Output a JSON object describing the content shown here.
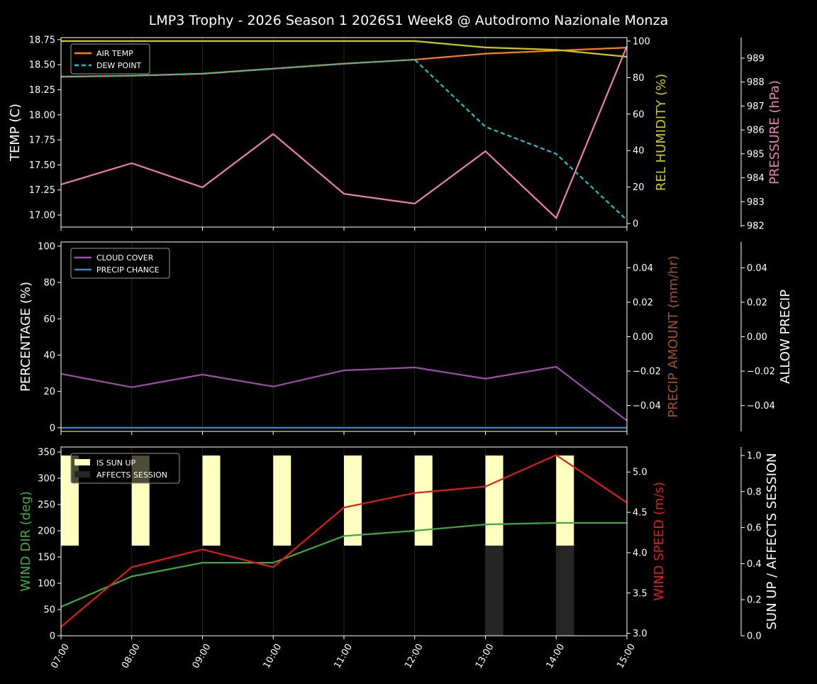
{
  "chart_data": {
    "title": "LMP3 Trophy - 2026 Season 1 2026S1 Week8 @ Autodromo Nazionale Monza",
    "x": [
      "07:00",
      "08:00",
      "09:00",
      "10:00",
      "11:00",
      "12:00",
      "13:00",
      "14:00",
      "15:00"
    ],
    "grid": "vertical",
    "panels": [
      {
        "type": "line",
        "legend_placement": "upper-left",
        "axes": [
          {
            "side": "left",
            "label": "TEMP (C)",
            "color": "#ffffff",
            "ylim": [
              16.88,
              18.77
            ],
            "ticks": [
              17.0,
              17.25,
              17.5,
              17.75,
              18.0,
              18.25,
              18.5,
              18.75
            ],
            "tick_labels": [
              "17.00",
              "17.25",
              "17.50",
              "17.75",
              "18.00",
              "18.25",
              "18.50",
              "18.75"
            ]
          },
          {
            "side": "right",
            "label": "REL HUMIDITY (%)",
            "color": "#cccc00",
            "ylim": [
              -1.9,
              101.9
            ],
            "ticks": [
              0,
              20,
              40,
              60,
              80,
              100
            ],
            "tick_labels": [
              "0",
              "20",
              "40",
              "60",
              "80",
              "100"
            ]
          },
          {
            "side": "right-outer",
            "label": "PRESSURE (hPa)",
            "color": "#f07cb8",
            "ylim": [
              981.94,
              989.86
            ],
            "ticks": [
              982,
              983,
              984,
              985,
              986,
              987,
              988,
              989
            ],
            "tick_labels": [
              "982",
              "983",
              "984",
              "985",
              "986",
              "987",
              "988",
              "989"
            ]
          }
        ],
        "series": [
          {
            "name": "AIR TEMP",
            "axis": 0,
            "color": "#ff7f0e",
            "dashed": false,
            "legend": true,
            "values": [
              18.38,
              18.39,
              18.41,
              18.46,
              18.51,
              18.55,
              18.61,
              18.64,
              18.67
            ]
          },
          {
            "name": "DEW POINT",
            "axis": 0,
            "color": "#17c8c8",
            "dashed": true,
            "legend": true,
            "values": [
              18.38,
              18.39,
              18.41,
              18.46,
              18.51,
              18.55,
              17.88,
              17.61,
              16.95
            ]
          },
          {
            "axis": 1,
            "color": "#cccc00",
            "dashed": false,
            "legend": false,
            "values": [
              100,
              100,
              100,
              100,
              100,
              100,
              96.5,
              95.2,
              91.4
            ]
          },
          {
            "axis": 2,
            "color": "#f07cb8",
            "dashed": false,
            "legend": false,
            "values": [
              983.72,
              984.61,
              983.6,
              985.83,
              983.33,
              982.92,
              985.11,
              982.32,
              989.5
            ]
          }
        ]
      },
      {
        "type": "line",
        "legend_placement": "upper-left",
        "axes": [
          {
            "side": "left",
            "label": "PERCENTAGE (%)",
            "color": "#ffffff",
            "ylim": [
              -2.0,
              102.3
            ],
            "ticks": [
              0,
              20,
              40,
              60,
              80,
              100
            ],
            "tick_labels": [
              "0",
              "20",
              "40",
              "60",
              "80",
              "100"
            ]
          },
          {
            "side": "right",
            "label": "PRECIP AMOUNT (mm/hr)",
            "color": "#a0522d",
            "ylim": [
              -0.055,
              0.055
            ],
            "ticks": [
              -0.04,
              -0.02,
              0,
              0.02,
              0.04
            ],
            "tick_labels": [
              "−0.04",
              "−0.02",
              "0.00",
              "0.02",
              "0.04"
            ]
          },
          {
            "side": "right-outer",
            "label": "ALLOW PRECIP",
            "color": "#ffffff",
            "ylim": [
              -0.055,
              0.055
            ],
            "ticks": [
              -0.04,
              -0.02,
              0,
              0.02,
              0.04
            ],
            "tick_labels": [
              "−0.04",
              "−0.02",
              "0.00",
              "0.02",
              "0.04"
            ]
          }
        ],
        "series": [
          {
            "name": "CLOUD COVER",
            "axis": 0,
            "color": "#9b4fa6",
            "dashed": false,
            "legend": true,
            "values": [
              29.7,
              22.3,
              29.3,
              22.7,
              31.6,
              33.2,
              27.0,
              33.6,
              3.9
            ]
          },
          {
            "name": "PRECIP CHANCE",
            "axis": 0,
            "color": "#3d85c6",
            "dashed": false,
            "legend": true,
            "values": [
              0,
              0,
              0,
              0,
              0,
              0,
              0,
              0,
              0
            ]
          }
        ]
      },
      {
        "type": "line+bar",
        "legend_placement": "upper-left",
        "axes": [
          {
            "side": "left",
            "label": "WIND DIR (deg)",
            "color": "#3daa3d",
            "ylim": [
              0,
              359.5
            ],
            "ticks": [
              0,
              50,
              100,
              150,
              200,
              250,
              300,
              350
            ],
            "tick_labels": [
              "0",
              "50",
              "100",
              "150",
              "200",
              "250",
              "300",
              "350"
            ]
          },
          {
            "side": "right",
            "label": "WIND SPEED (m/s)",
            "color": "#e31a1c",
            "ylim": [
              2.97,
              5.31
            ],
            "ticks": [
              3.0,
              3.5,
              4.0,
              4.5,
              5.0
            ],
            "tick_labels": [
              "3.0",
              "3.5",
              "4.0",
              "4.5",
              "5.0"
            ]
          },
          {
            "side": "right-outer",
            "label": "SUN UP / AFFECTS SESSION",
            "color": "#ffffff",
            "ylim": [
              0,
              1.047
            ],
            "ticks": [
              0,
              0.2,
              0.4,
              0.6,
              0.8,
              1.0
            ],
            "tick_labels": [
              "0.0",
              "0.2",
              "0.4",
              "0.6",
              "0.8",
              "1.0"
            ]
          }
        ],
        "bars": [
          {
            "name": "IS SUN UP",
            "axis": 2,
            "color": "#ffffc0",
            "base": 0.5,
            "height": 0.5,
            "values": [
              1,
              1,
              1,
              1,
              1,
              1,
              1,
              1,
              0
            ]
          },
          {
            "name": "AFFECTS SESSION",
            "axis": 2,
            "color": "#262626",
            "base": 0,
            "height": 0.5,
            "values": [
              0,
              0,
              0,
              0,
              0,
              0,
              1,
              1,
              0
            ]
          }
        ],
        "series": [
          {
            "axis": 0,
            "color": "#3daa3d",
            "dashed": false,
            "legend": false,
            "values": [
              55,
              113,
              139,
              139,
              190,
              200,
              212,
              215,
              215
            ]
          },
          {
            "axis": 1,
            "color": "#e31a1c",
            "dashed": false,
            "legend": false,
            "values": [
              3.08,
              3.82,
              4.04,
              3.82,
              4.56,
              4.74,
              4.82,
              5.21,
              4.62
            ]
          }
        ]
      }
    ]
  }
}
